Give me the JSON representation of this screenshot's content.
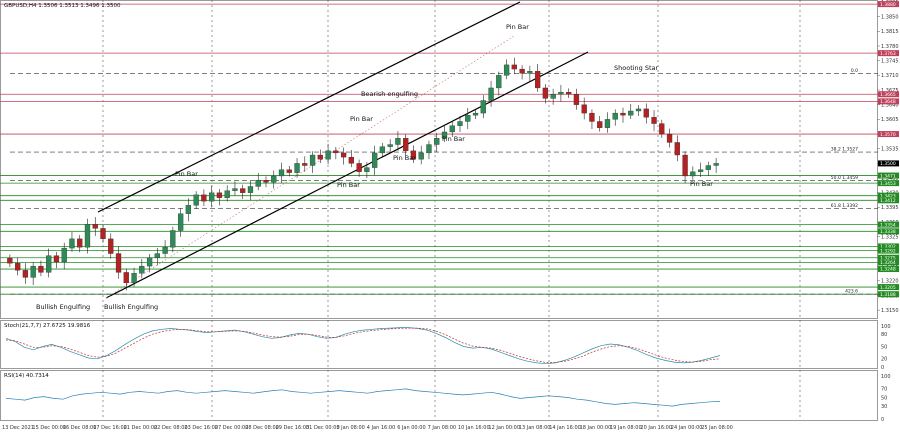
{
  "symbol_line": "GBPUSD,H4  1.3506 1.3513 1.3496 1.3500",
  "chart_data": [
    {
      "type": "candlestick",
      "ylim": [
        1.3136,
        1.3885
      ],
      "price_ticks": [
        "1.3885",
        "1.3850",
        "1.3815",
        "1.3780",
        "1.3745",
        "1.3710",
        "1.3675",
        "1.3640",
        "1.3605",
        "1.3570",
        "1.3535",
        "1.3500",
        "1.3465",
        "1.3430",
        "1.3395",
        "1.3360",
        "1.3325",
        "1.3290",
        "1.3255",
        "1.3220",
        "1.3185",
        "1.3150"
      ],
      "x_labels": [
        "13 Dec 2021",
        "15 Dec 00:00",
        "16 Dec 08:00",
        "17 Dec 16:00",
        "21 Dec 00:00",
        "22 Dec 08:00",
        "23 Dec 16:00",
        "27 Dec 00:00",
        "28 Dec 08:00",
        "29 Dec 16:00",
        "31 Dec 00:00",
        "3 Jan 08:00",
        "4 Jan 16:00",
        "6 Jan 00:00",
        "7 Jan 08:00",
        "10 Jan 16:00",
        "12 Jan 00:00",
        "13 Jan 08:00",
        "14 Jan 16:00",
        "18 Jan 00:00",
        "19 Jan 08:00",
        "20 Jan 16:00",
        "24 Jan 00:00",
        "25 Jan 08:00"
      ],
      "close": [
        1.3262,
        1.3245,
        1.3228,
        1.3255,
        1.324,
        1.328,
        1.3265,
        1.3298,
        1.332,
        1.33,
        1.3355,
        1.3345,
        1.332,
        1.3285,
        1.324,
        1.3215,
        1.3238,
        1.3255,
        1.3275,
        1.3285,
        1.33,
        1.334,
        1.338,
        1.34,
        1.3425,
        1.341,
        1.343,
        1.3418,
        1.3435,
        1.344,
        1.343,
        1.3445,
        1.346,
        1.3455,
        1.347,
        1.3485,
        1.3478,
        1.35,
        1.3495,
        1.352,
        1.351,
        1.353,
        1.3525,
        1.3515,
        1.35,
        1.348,
        1.349,
        1.3525,
        1.354,
        1.3545,
        1.356,
        1.353,
        1.351,
        1.3525,
        1.3545,
        1.356,
        1.3575,
        1.359,
        1.36,
        1.3615,
        1.362,
        1.365,
        1.368,
        1.371,
        1.3735,
        1.3725,
        1.3715,
        1.372,
        1.368,
        1.3655,
        1.3665,
        1.367,
        1.3665,
        1.364,
        1.362,
        1.36,
        1.3585,
        1.3605,
        1.362,
        1.3615,
        1.3625,
        1.363,
        1.361,
        1.3595,
        1.357,
        1.355,
        1.352,
        1.347,
        1.348,
        1.3485,
        1.3495,
        1.35
      ],
      "annotations": [
        "Bullish Engulfing",
        "Bullish Engulfing",
        "Pin Bar",
        "Pin Bar",
        "Bearish engulfing",
        "Pin Bar",
        "Pin Bar",
        "Pin Bar",
        "Pin Bar",
        "Shooting Star",
        "Pin Bar"
      ],
      "fib_levels": [
        "0.0",
        "38.2 1.3527",
        "50.0 1.3459",
        "61.8 1.3392",
        "423.6"
      ],
      "price_tags": [
        "1.3880",
        "1.3763",
        "1.3665",
        "1.3648",
        "1.3570",
        "1.3500",
        "1.3471",
        "1.3453",
        "1.3423",
        "1.3412",
        "1.3354",
        "1.3338",
        "1.3302",
        "1.3292",
        "1.3275",
        "1.3264",
        "1.3248",
        "1.3205",
        "1.3188"
      ],
      "colors": {
        "bull": "#2e8b57",
        "bear": "#b22222",
        "level": "#228b22",
        "resistance": "#c0405a",
        "channel": "#000000"
      }
    },
    {
      "type": "line",
      "title": "Stoch(21,7,7) 27.6725 19.9816",
      "ylim": [
        0,
        100
      ],
      "ticks": [
        "100",
        "80",
        "50",
        "20",
        "0"
      ],
      "series": [
        {
          "values": [
            70,
            62,
            48,
            42,
            50,
            55,
            48,
            38,
            30,
            22,
            20,
            28,
            40,
            55,
            68,
            80,
            88,
            92,
            94,
            92,
            90,
            86,
            84,
            86,
            88,
            90,
            86,
            80,
            74,
            70,
            72,
            78,
            82,
            80,
            74,
            70,
            72,
            80,
            86,
            90,
            92,
            94,
            95,
            96,
            96,
            94,
            90,
            82,
            72,
            60,
            50,
            46,
            48,
            44,
            36,
            28,
            20,
            14,
            10,
            8,
            10,
            16,
            24,
            34,
            44,
            52,
            56,
            54,
            48,
            40,
            30,
            22,
            16,
            12,
            10,
            12,
            16,
            22,
            28
          ]
        },
        {
          "values": [
            66,
            64,
            56,
            48,
            48,
            52,
            50,
            44,
            36,
            28,
            24,
            26,
            34,
            46,
            58,
            70,
            80,
            86,
            90,
            92,
            91,
            88,
            86,
            86,
            87,
            88,
            87,
            83,
            78,
            74,
            73,
            75,
            79,
            80,
            77,
            73,
            72,
            76,
            82,
            86,
            89,
            91,
            93,
            94,
            95,
            95,
            93,
            87,
            79,
            68,
            58,
            51,
            48,
            46,
            41,
            34,
            26,
            20,
            15,
            11,
            11,
            14,
            19,
            26,
            36,
            44,
            50,
            52,
            50,
            45,
            37,
            29,
            22,
            17,
            13,
            12,
            14,
            18,
            20
          ]
        }
      ]
    },
    {
      "type": "line",
      "title": "RSI(14) 40.7314",
      "ylim": [
        0,
        100
      ],
      "ticks": [
        "100",
        "70",
        "50",
        "30",
        "0"
      ],
      "series": [
        {
          "values": [
            48,
            46,
            44,
            50,
            52,
            48,
            46,
            54,
            58,
            60,
            62,
            60,
            58,
            62,
            64,
            62,
            60,
            64,
            66,
            62,
            60,
            62,
            64,
            66,
            64,
            62,
            60,
            63,
            66,
            68,
            64,
            62,
            60,
            62,
            64,
            66,
            64,
            62,
            60,
            64,
            66,
            68,
            70,
            66,
            64,
            62,
            60,
            58,
            56,
            58,
            60,
            62,
            58,
            52,
            48,
            50,
            52,
            54,
            52,
            50,
            46,
            44,
            40,
            36,
            34,
            36,
            38,
            36,
            34,
            32,
            30,
            34,
            36,
            38,
            40,
            41
          ]
        }
      ]
    }
  ]
}
